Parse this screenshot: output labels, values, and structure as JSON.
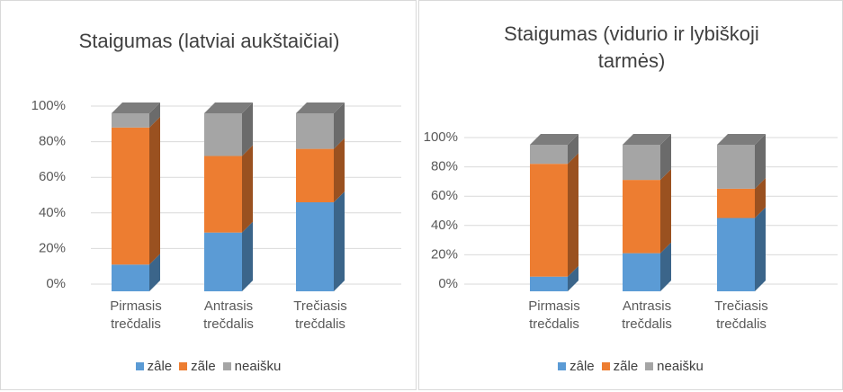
{
  "chart_data": [
    {
      "type": "bar",
      "stacked": true,
      "title": "Staigumas (latviai aukštaičiai)",
      "categories": [
        "Pirmasis trečdalis",
        "Antrasis trečdalis",
        "Trečiasis trečdalis"
      ],
      "series": [
        {
          "name": "zâle",
          "color": "#5b9bd5",
          "values": [
            15,
            33,
            50
          ]
        },
        {
          "name": "zãle",
          "color": "#ed7d31",
          "values": [
            77,
            43,
            30
          ]
        },
        {
          "name": "neaišku",
          "color": "#a5a5a5",
          "values": [
            8,
            24,
            20
          ]
        }
      ],
      "ylim": [
        0,
        100
      ],
      "yticks": [
        {
          "value": 0,
          "label": "0%"
        },
        {
          "value": 20,
          "label": "20%"
        },
        {
          "value": 40,
          "label": "40%"
        },
        {
          "value": 60,
          "label": "60%"
        },
        {
          "value": 80,
          "label": "80%"
        },
        {
          "value": 100,
          "label": "100%"
        }
      ],
      "grid": true,
      "legend": "bottom"
    },
    {
      "type": "bar",
      "stacked": true,
      "title": "Staigumas (vidurio ir lybiškoji tarmės)",
      "categories": [
        "Pirmasis trečdalis",
        "Antrasis trečdalis",
        "Trečiasis trečdalis"
      ],
      "series": [
        {
          "name": "zâle",
          "color": "#5b9bd5",
          "values": [
            10,
            26,
            50
          ]
        },
        {
          "name": "zãle",
          "color": "#ed7d31",
          "values": [
            77,
            50,
            20
          ]
        },
        {
          "name": "neaišku",
          "color": "#a5a5a5",
          "values": [
            13,
            24,
            30
          ]
        }
      ],
      "ylim": [
        0,
        100
      ],
      "yticks": [
        {
          "value": 0,
          "label": "0%"
        },
        {
          "value": 20,
          "label": "20%"
        },
        {
          "value": 40,
          "label": "40%"
        },
        {
          "value": 60,
          "label": "60%"
        },
        {
          "value": 80,
          "label": "80%"
        },
        {
          "value": 100,
          "label": "100%"
        }
      ],
      "grid": true,
      "legend": "bottom"
    }
  ]
}
